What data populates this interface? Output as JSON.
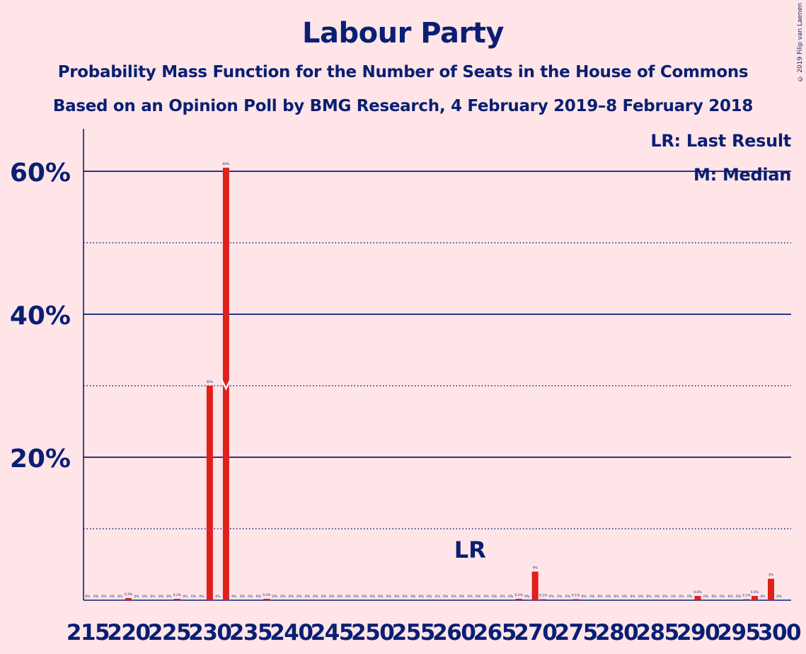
{
  "copyright": "© 2019 Filip van Laenen",
  "legend": {
    "last_result": "LR: Last Result",
    "median": "M: Median"
  },
  "colors": {
    "background": "#FFE5E8",
    "bar": "#E0201B",
    "axis": "#0A1F73"
  },
  "chart_data": {
    "type": "bar",
    "title": "Labour Party",
    "subtitle": "Probability Mass Function for the Number of Seats in the House of Commons",
    "subtitle2": "Based on an Opinion Poll by BMG Research, 4 February 2019–8 February 2018",
    "xlabel": "",
    "ylabel": "",
    "xlim": [
      215,
      300
    ],
    "ylim": [
      0,
      66
    ],
    "yticks": [
      20,
      40,
      60
    ],
    "ytick_labels": [
      "20%",
      "40%",
      "60%"
    ],
    "minor_gridlines": [
      10,
      30,
      50
    ],
    "xtick_labels": [
      "215",
      "220",
      "225",
      "230",
      "235",
      "240",
      "245",
      "250",
      "255",
      "260",
      "265",
      "270",
      "275",
      "280",
      "285",
      "290",
      "295",
      "300"
    ],
    "last_result_seat": 262,
    "last_result_label": "LR",
    "median_seat": 232,
    "median_label": "M",
    "seats": [
      215,
      216,
      217,
      218,
      219,
      220,
      221,
      222,
      223,
      224,
      225,
      226,
      227,
      228,
      229,
      230,
      231,
      232,
      233,
      234,
      235,
      236,
      237,
      238,
      239,
      240,
      241,
      242,
      243,
      244,
      245,
      246,
      247,
      248,
      249,
      250,
      251,
      252,
      253,
      254,
      255,
      256,
      257,
      258,
      259,
      260,
      261,
      262,
      263,
      264,
      265,
      266,
      267,
      268,
      269,
      270,
      271,
      272,
      273,
      274,
      275,
      276,
      277,
      278,
      279,
      280,
      281,
      282,
      283,
      284,
      285,
      286,
      287,
      288,
      289,
      290,
      291,
      292,
      293,
      294,
      295,
      296,
      297,
      298,
      299,
      300
    ],
    "values": [
      0,
      0,
      0,
      0,
      0,
      0.3,
      0,
      0,
      0,
      0,
      0,
      0.2,
      0,
      0,
      0,
      30,
      0,
      60.5,
      0,
      0,
      0,
      0,
      0.2,
      0,
      0,
      0,
      0,
      0,
      0,
      0,
      0,
      0,
      0,
      0,
      0,
      0,
      0,
      0,
      0,
      0,
      0,
      0,
      0,
      0,
      0,
      0,
      0,
      0,
      0,
      0,
      0,
      0,
      0,
      0.2,
      0,
      4,
      0.1,
      0,
      0,
      0,
      0.1,
      0,
      0,
      0,
      0,
      0,
      0,
      0,
      0,
      0,
      0,
      0,
      0,
      0,
      0,
      0.6,
      0,
      0,
      0,
      0,
      0,
      0.1,
      0.6,
      0,
      3,
      0
    ],
    "value_labels": [
      "0%",
      "0%",
      "0%",
      "0%",
      "0%",
      "0.3%",
      "0%",
      "0%",
      "0%",
      "0%",
      "0%",
      "0.2%",
      "0%",
      "0%",
      "0%",
      "30%",
      "0%",
      "60%",
      "0%",
      "0%",
      "0%",
      "0%",
      "0.2%",
      "0%",
      "0%",
      "0%",
      "0%",
      "0%",
      "0%",
      "0%",
      "0%",
      "0%",
      "0%",
      "0%",
      "0%",
      "0%",
      "0%",
      "0%",
      "0%",
      "0%",
      "0%",
      "0%",
      "0%",
      "0%",
      "0%",
      "0%",
      "0%",
      "0%",
      "0%",
      "0%",
      "0%",
      "0%",
      "0%",
      "0.2%",
      "0%",
      "4%",
      "0.1%",
      "0%",
      "0%",
      "0%",
      "0.1%",
      "0%",
      "0%",
      "0%",
      "0%",
      "0%",
      "0%",
      "0%",
      "0%",
      "0%",
      "0%",
      "0%",
      "0%",
      "0%",
      "0%",
      "0.6%",
      "0%",
      "0%",
      "0%",
      "0%",
      "0%",
      "0.1%",
      "0.6%",
      "0%",
      "3%",
      "0%"
    ],
    "grid": true
  }
}
